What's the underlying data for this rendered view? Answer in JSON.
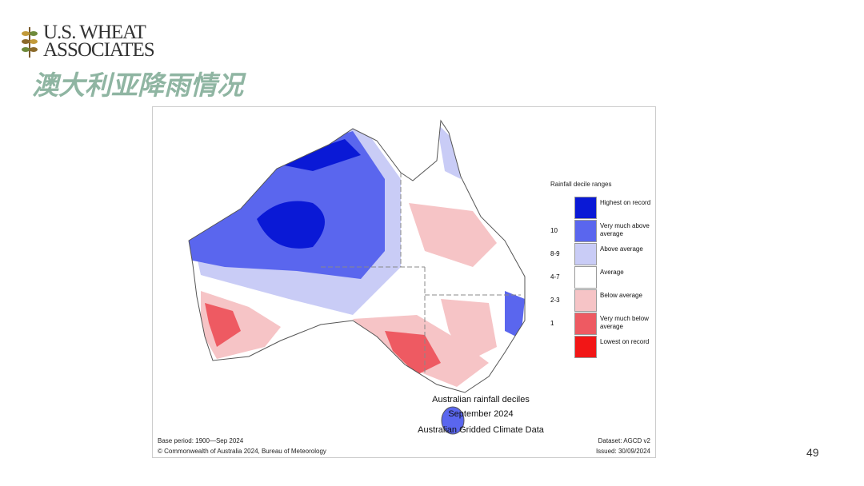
{
  "logo": {
    "line1": "U.S. WHEAT",
    "line2": "ASSOCIATES"
  },
  "title": "澳大利亚降雨情况",
  "map": {
    "legend": {
      "title": "Rainfall decile ranges",
      "items": [
        {
          "label": "Highest on record",
          "color": "#0a19d6"
        },
        {
          "range": "10",
          "label": "Very much above average",
          "color": "#5a66ee"
        },
        {
          "range": "8-9",
          "label": "Above average",
          "color": "#c9ccf6"
        },
        {
          "range": "4-7",
          "label": "Average",
          "color": "#ffffff"
        },
        {
          "range": "2-3",
          "label": "Below average",
          "color": "#f6c4c6"
        },
        {
          "range": "1",
          "label": "Very much below average",
          "color": "#ee5a62"
        },
        {
          "label": "Lowest on record",
          "color": "#f21616"
        }
      ]
    },
    "caption": [
      "Australian rainfall deciles",
      "September 2024",
      "Australian Gridded Climate Data"
    ],
    "base_period": "Base period: 1900—Sep 2024",
    "dataset": "Dataset: AGCD v2",
    "copyright": "© Commonwealth of Australia 2024, Bureau of Meteorology",
    "issued": "Issued: 30/09/2024"
  },
  "page_number": 49
}
